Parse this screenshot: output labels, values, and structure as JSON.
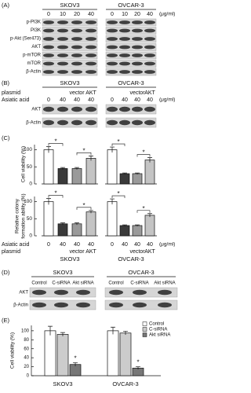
{
  "panel_a": {
    "label": "(A)",
    "cell_lines": [
      "SKOV3",
      "OVCAR-3"
    ],
    "doses": [
      "0",
      "10",
      "20",
      "40"
    ],
    "unit": "(μg/ml)",
    "rows": [
      "p-PI3K",
      "PI3K",
      "p-Akt (Ser473)",
      "AKT",
      "p-mTOR",
      "mTOR",
      "β-Actin"
    ]
  },
  "panel_b": {
    "label": "(B)",
    "cell_lines": [
      "SKOV3",
      "OVCAR-3"
    ],
    "plasmid_label": "plasmid",
    "plasmids": [
      "vector",
      "AKT"
    ],
    "treatment_label": "Asiatic acid",
    "doses": [
      "0",
      "40",
      "40",
      "40"
    ],
    "unit": "(μg/ml)",
    "rows": [
      "AKT",
      "β-Actin"
    ]
  },
  "panel_c": {
    "label": "(C)",
    "significance_mark": "*",
    "bar_colors": [
      "#ffffff",
      "#3a3a3a",
      "#9a9a9a",
      "#c4c4c4"
    ],
    "treatment_label": "Asiatic acid",
    "doses": [
      "0",
      "40",
      "40",
      "40"
    ],
    "unit": "(μg/ml)",
    "plasmid_label": "plasmid",
    "plasmids": [
      "vector",
      "AKT"
    ],
    "cell_lines": [
      "SKOV3",
      "OVCAR-3"
    ],
    "charts": [
      {
        "ylabel_lines": [
          "Cell viability (%)"
        ],
        "ylim": [
          0,
          115
        ],
        "yticks": [
          0,
          50,
          100
        ],
        "groups": [
          {
            "values": [
              100,
              45,
              45,
              75
            ],
            "errors": [
              9,
              3,
              3,
              7
            ]
          },
          {
            "values": [
              100,
              30,
              30,
              70
            ],
            "errors": [
              8,
              2,
              2,
              7
            ]
          }
        ]
      },
      {
        "ylabel_lines": [
          "Relative colony",
          "formation ability (%)"
        ],
        "ylim": [
          0,
          115
        ],
        "yticks": [
          0,
          50,
          100
        ],
        "groups": [
          {
            "values": [
              100,
              35,
              35,
              70
            ],
            "errors": [
              9,
              3,
              3,
              4
            ]
          },
          {
            "values": [
              100,
              30,
              30,
              60
            ],
            "errors": [
              8,
              2,
              2,
              5
            ]
          }
        ]
      }
    ]
  },
  "panel_d": {
    "label": "(D)",
    "cell_lines": [
      "SKOV3",
      "OVCAR-3"
    ],
    "lanes": [
      "Control",
      "C-siRNA",
      "Akt siRNA"
    ],
    "rows": [
      "AKT",
      "β-Actin"
    ]
  },
  "panel_e": {
    "label": "(E)",
    "ylabel": "Cell viability (%)",
    "ylim": [
      0,
      112
    ],
    "yticks": [
      0,
      20,
      40,
      60,
      80,
      100
    ],
    "categories": [
      "SKOV3",
      "OVCAR-3"
    ],
    "significance_mark": "*",
    "series": [
      {
        "name": "Control",
        "color": "#ffffff",
        "values": [
          100,
          100
        ],
        "errors": [
          10,
          8
        ]
      },
      {
        "name": "C-siRNA",
        "color": "#cccccc",
        "values": [
          92,
          95
        ],
        "errors": [
          4,
          4
        ]
      },
      {
        "name": "Akt siRNA",
        "color": "#777777",
        "values": [
          25,
          17
        ],
        "errors": [
          4,
          3
        ]
      }
    ]
  }
}
